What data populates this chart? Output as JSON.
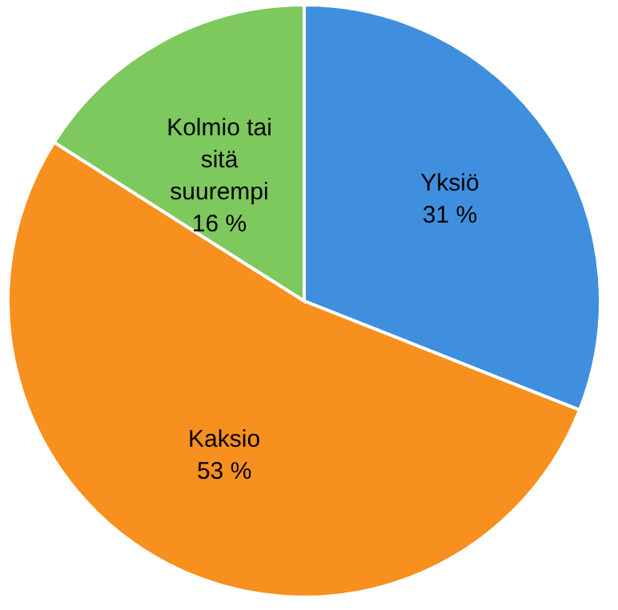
{
  "chart_data": {
    "type": "pie",
    "categories": [
      "Yksiö",
      "Kaksio",
      "Kolmio tai sitä suurempi"
    ],
    "values": [
      31,
      53,
      16
    ],
    "colors": [
      "#3f8fde",
      "#f7901e",
      "#7dc95e"
    ],
    "value_labels": [
      "31 %",
      "53 %",
      "16 %"
    ]
  }
}
